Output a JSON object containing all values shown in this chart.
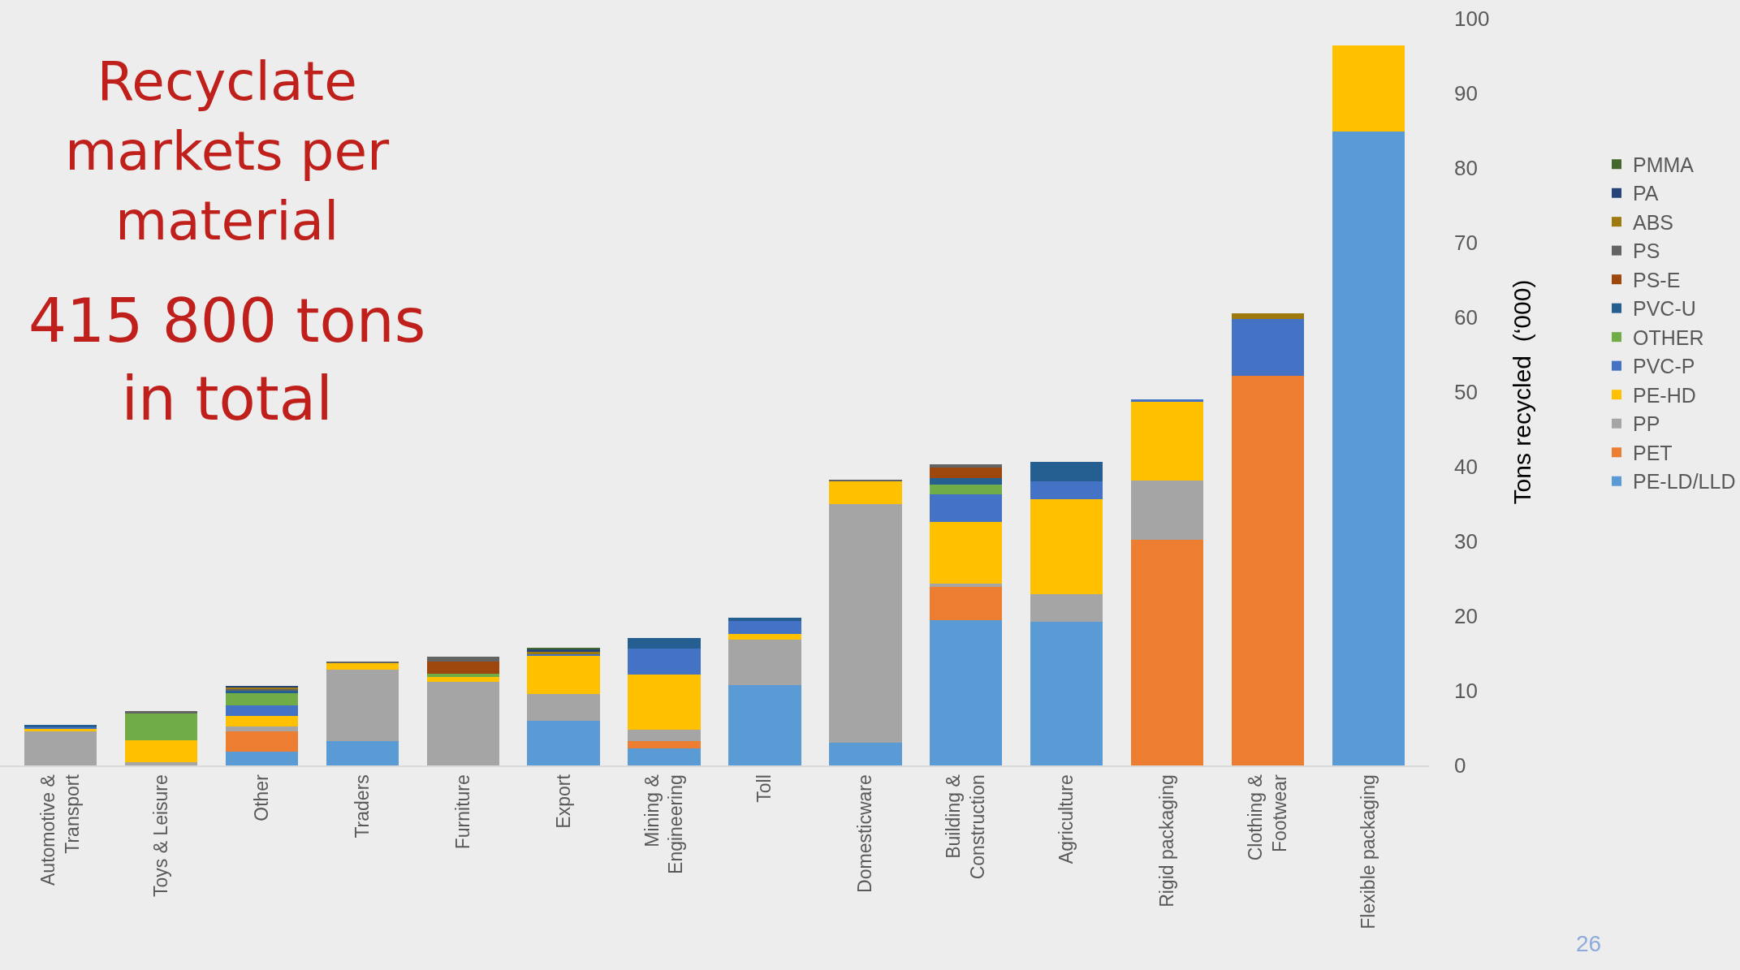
{
  "chart_data": {
    "type": "bar",
    "title": "Recyclate markets per material",
    "subtitle": "415 800 tons in total",
    "ylabel": "Tons recycled  (‘000)",
    "categories": [
      "Automotive & Transport",
      "Toys & Leisure",
      "Other",
      "Traders",
      "Furniture",
      "Export",
      "Mining & Engineering",
      "Toll",
      "Domesticware",
      "Building & Construction",
      "Agriculture",
      "Rigid packaging",
      "Clothing & Footwear",
      "Flexible packaging"
    ],
    "stacked": true,
    "ylim": [
      0,
      100
    ],
    "yticks": [
      0,
      10,
      20,
      30,
      40,
      50,
      60,
      70,
      80,
      90,
      100
    ],
    "legend": "right",
    "annotations": [
      "26"
    ],
    "series": [
      {
        "name": "PE-LD/LLD",
        "color": "#5b9bd5",
        "values": [
          null,
          null,
          1.9,
          3.3,
          null,
          6.0,
          2.3,
          10.8,
          3.0,
          19.5,
          19.2,
          null,
          null,
          84.9
        ]
      },
      {
        "name": "PET",
        "color": "#ed7d31",
        "values": [
          null,
          null,
          2.7,
          null,
          null,
          null,
          1.0,
          null,
          null,
          4.4,
          null,
          30.2,
          52.2,
          null
        ]
      },
      {
        "name": "PP",
        "color": "#a5a5a5",
        "values": [
          4.6,
          0.4,
          0.6,
          9.5,
          11.2,
          3.6,
          1.5,
          6.0,
          32.0,
          0.5,
          3.7,
          8.0,
          null,
          null
        ]
      },
      {
        "name": "PE-HD",
        "color": "#ffc000",
        "values": [
          0.3,
          3.0,
          1.4,
          0.9,
          0.7,
          5.1,
          7.4,
          0.8,
          3.1,
          8.2,
          12.8,
          10.6,
          null,
          11.5
        ]
      },
      {
        "name": "PVC-P",
        "color": "#4472c4",
        "values": [
          0.3,
          null,
          1.4,
          null,
          null,
          0.2,
          3.4,
          1.8,
          null,
          3.7,
          2.3,
          0.2,
          7.6,
          null
        ]
      },
      {
        "name": "OTHER",
        "color": "#70ad47",
        "values": [
          null,
          3.6,
          1.7,
          null,
          0.4,
          null,
          null,
          null,
          null,
          1.3,
          null,
          null,
          null,
          null
        ]
      },
      {
        "name": "PVC-U",
        "color": "#255e91",
        "values": [
          0.2,
          null,
          0.4,
          null,
          null,
          null,
          1.5,
          0.4,
          null,
          0.9,
          2.6,
          null,
          null,
          null
        ]
      },
      {
        "name": "PS-E",
        "color": "#9e480e",
        "values": [
          null,
          null,
          null,
          null,
          1.6,
          null,
          null,
          null,
          null,
          1.4,
          null,
          null,
          null,
          null
        ]
      },
      {
        "name": "PS",
        "color": "#636363",
        "values": [
          null,
          0.3,
          0.2,
          0.2,
          0.7,
          null,
          null,
          null,
          0.2,
          0.4,
          null,
          null,
          null,
          null
        ]
      },
      {
        "name": "ABS",
        "color": "#9e7a0e",
        "values": [
          null,
          null,
          0.2,
          null,
          null,
          0.4,
          null,
          null,
          null,
          null,
          null,
          null,
          0.7,
          null
        ]
      },
      {
        "name": "PA",
        "color": "#264478",
        "values": [
          null,
          null,
          0.2,
          null,
          null,
          0.2,
          null,
          null,
          null,
          null,
          null,
          null,
          null,
          null
        ]
      },
      {
        "name": "PMMA",
        "color": "#43682b",
        "values": [
          null,
          null,
          null,
          null,
          null,
          0.3,
          null,
          null,
          null,
          null,
          null,
          null,
          null,
          null
        ]
      }
    ]
  }
}
